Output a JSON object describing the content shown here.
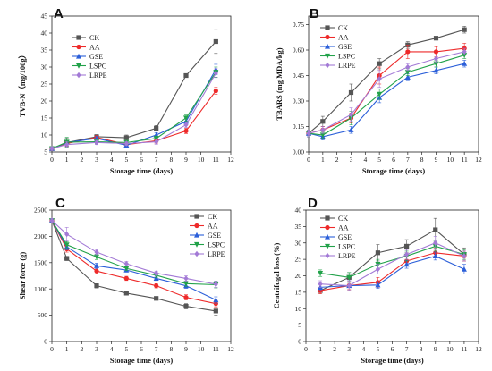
{
  "colors": {
    "CK": "#555555",
    "AA": "#ee2a2a",
    "GSE": "#2b5fd9",
    "LSPC": "#22a24a",
    "LRPE": "#a37ad6"
  },
  "chart_data": [
    {
      "type": "line",
      "panel": "A",
      "xlabel": "Storage time (days)",
      "ylabel": "TVB-N（mg/100g）",
      "xlim": [
        0,
        12
      ],
      "ylim": [
        5,
        45
      ],
      "xticks": [
        0,
        1,
        2,
        3,
        4,
        5,
        6,
        7,
        8,
        9,
        10,
        11,
        12
      ],
      "yticks": [
        5,
        10,
        15,
        20,
        25,
        30,
        35,
        40,
        45
      ],
      "legend_position": "top-left",
      "x": [
        0,
        1,
        3,
        5,
        7,
        9,
        11
      ],
      "series": [
        {
          "name": "CK",
          "marker": "square",
          "values": [
            6.0,
            7.8,
            9.5,
            9.2,
            12.0,
            27.5,
            37.5
          ],
          "err": [
            0.6,
            1.2,
            0.6,
            0.8,
            0.8,
            0.5,
            3.5
          ]
        },
        {
          "name": "AA",
          "marker": "circle",
          "values": [
            6.0,
            7.5,
            9.3,
            7.2,
            8.3,
            11.2,
            23.0
          ],
          "err": [
            0.5,
            0.8,
            0.5,
            0.6,
            0.7,
            0.8,
            1.0
          ]
        },
        {
          "name": "GSE",
          "marker": "triangle",
          "values": [
            6.0,
            7.8,
            9.0,
            7.0,
            10.0,
            14.0,
            29.3
          ],
          "err": [
            0.5,
            1.0,
            0.6,
            0.5,
            0.7,
            0.9,
            1.5
          ]
        },
        {
          "name": "LSPC",
          "marker": "triangle-down",
          "values": [
            6.0,
            7.9,
            8.0,
            7.8,
            9.0,
            15.0,
            28.5
          ],
          "err": [
            0.5,
            1.4,
            0.6,
            0.6,
            0.7,
            0.9,
            1.5
          ]
        },
        {
          "name": "LRPE",
          "marker": "diamond",
          "values": [
            6.0,
            7.2,
            7.8,
            7.5,
            8.0,
            13.0,
            28.2
          ],
          "err": [
            0.5,
            0.9,
            0.6,
            0.5,
            0.7,
            0.8,
            1.3
          ]
        }
      ]
    },
    {
      "type": "line",
      "panel": "B",
      "xlabel": "Storage time (days)",
      "ylabel": "TBARS (mg MDA/kg)",
      "xlim": [
        0,
        12
      ],
      "ylim": [
        0.0,
        0.8
      ],
      "xticks": [
        0,
        1,
        2,
        3,
        4,
        5,
        6,
        7,
        8,
        9,
        10,
        11,
        12
      ],
      "yticks": [
        "0.00",
        "0.15",
        "0.30",
        "0.45",
        "0.60",
        "0.75"
      ],
      "ytick_values": [
        0.0,
        0.15,
        0.3,
        0.45,
        0.6,
        0.75
      ],
      "legend_position": "top-left",
      "x": [
        0,
        1,
        3,
        5,
        7,
        9,
        11
      ],
      "series": [
        {
          "name": "CK",
          "marker": "square",
          "values": [
            0.11,
            0.18,
            0.35,
            0.52,
            0.63,
            0.67,
            0.72
          ],
          "err": [
            0.02,
            0.03,
            0.05,
            0.03,
            0.02,
            0.01,
            0.02
          ]
        },
        {
          "name": "AA",
          "marker": "circle",
          "values": [
            0.11,
            0.13,
            0.2,
            0.45,
            0.59,
            0.59,
            0.61
          ],
          "err": [
            0.02,
            0.02,
            0.03,
            0.05,
            0.04,
            0.03,
            0.03
          ]
        },
        {
          "name": "GSE",
          "marker": "triangle",
          "values": [
            0.11,
            0.09,
            0.13,
            0.32,
            0.44,
            0.48,
            0.52
          ],
          "err": [
            0.02,
            0.02,
            0.02,
            0.03,
            0.02,
            0.02,
            0.02
          ]
        },
        {
          "name": "LSPC",
          "marker": "triangle-down",
          "values": [
            0.11,
            0.1,
            0.2,
            0.34,
            0.47,
            0.52,
            0.57
          ],
          "err": [
            0.02,
            0.02,
            0.04,
            0.03,
            0.02,
            0.02,
            0.02
          ]
        },
        {
          "name": "LRPE",
          "marker": "diamond",
          "values": [
            0.11,
            0.13,
            0.22,
            0.43,
            0.5,
            0.55,
            0.59
          ],
          "err": [
            0.02,
            0.02,
            0.04,
            0.05,
            0.02,
            0.02,
            0.02
          ]
        }
      ]
    },
    {
      "type": "line",
      "panel": "C",
      "xlabel": "Storage time (days)",
      "ylabel": "Shear force (g)",
      "xlim": [
        0,
        12
      ],
      "ylim": [
        0,
        2500
      ],
      "xticks": [
        0,
        1,
        2,
        3,
        4,
        5,
        6,
        7,
        8,
        9,
        10,
        11,
        12
      ],
      "yticks": [
        0,
        500,
        1000,
        1500,
        2000,
        2500
      ],
      "legend_position": "top-right",
      "x": [
        0,
        1,
        3,
        5,
        7,
        9,
        11
      ],
      "series": [
        {
          "name": "CK",
          "marker": "square",
          "values": [
            2300,
            1580,
            1060,
            920,
            820,
            670,
            580
          ],
          "err": [
            40,
            40,
            40,
            30,
            30,
            50,
            80
          ]
        },
        {
          "name": "AA",
          "marker": "circle",
          "values": [
            2300,
            1760,
            1340,
            1200,
            1060,
            840,
            720
          ],
          "err": [
            40,
            60,
            50,
            40,
            40,
            50,
            60
          ]
        },
        {
          "name": "GSE",
          "marker": "triangle",
          "values": [
            2300,
            1800,
            1440,
            1360,
            1200,
            1060,
            790
          ],
          "err": [
            40,
            60,
            50,
            40,
            40,
            50,
            60
          ]
        },
        {
          "name": "LSPC",
          "marker": "triangle-down",
          "values": [
            2300,
            1840,
            1610,
            1390,
            1260,
            1100,
            1080
          ],
          "err": [
            40,
            60,
            50,
            40,
            40,
            50,
            60
          ]
        },
        {
          "name": "LRPE",
          "marker": "diamond",
          "values": [
            2300,
            2040,
            1700,
            1480,
            1300,
            1200,
            1090
          ],
          "err": [
            40,
            130,
            50,
            40,
            40,
            50,
            60
          ]
        }
      ]
    },
    {
      "type": "line",
      "panel": "D",
      "xlabel": "Storage time (days)",
      "ylabel": "Centrifugal loss (%)",
      "xlim": [
        0,
        12
      ],
      "ylim": [
        0,
        40
      ],
      "xticks": [
        0,
        1,
        2,
        3,
        4,
        5,
        6,
        7,
        8,
        9,
        10,
        11,
        12
      ],
      "yticks": [
        0,
        5,
        10,
        15,
        20,
        25,
        30,
        35,
        40
      ],
      "legend_position": "top-left",
      "x": [
        1,
        3,
        5,
        7,
        9,
        11
      ],
      "series": [
        {
          "name": "CK",
          "marker": "square",
          "values": [
            15.5,
            19.5,
            27.0,
            29.0,
            34.0,
            26.5
          ],
          "err": [
            1.0,
            1.5,
            2.5,
            2.0,
            3.5,
            2.0
          ]
        },
        {
          "name": "AA",
          "marker": "circle",
          "values": [
            15.5,
            17.0,
            18.0,
            24.5,
            27.0,
            26.0
          ],
          "err": [
            1.0,
            1.2,
            1.5,
            1.5,
            1.5,
            1.5
          ]
        },
        {
          "name": "GSE",
          "marker": "triangle",
          "values": [
            16.5,
            17.0,
            17.2,
            23.5,
            26.0,
            22.0
          ],
          "err": [
            1.0,
            1.5,
            1.0,
            1.2,
            1.2,
            1.5
          ]
        },
        {
          "name": "LSPC",
          "marker": "triangle-down",
          "values": [
            20.8,
            19.5,
            23.5,
            26.0,
            29.0,
            26.5
          ],
          "err": [
            1.0,
            1.5,
            1.5,
            1.5,
            1.5,
            1.5
          ]
        },
        {
          "name": "LRPE",
          "marker": "diamond",
          "values": [
            17.5,
            17.0,
            22.0,
            26.5,
            30.0,
            26.0
          ],
          "err": [
            1.0,
            1.5,
            1.5,
            1.5,
            2.0,
            1.5
          ]
        }
      ]
    }
  ]
}
